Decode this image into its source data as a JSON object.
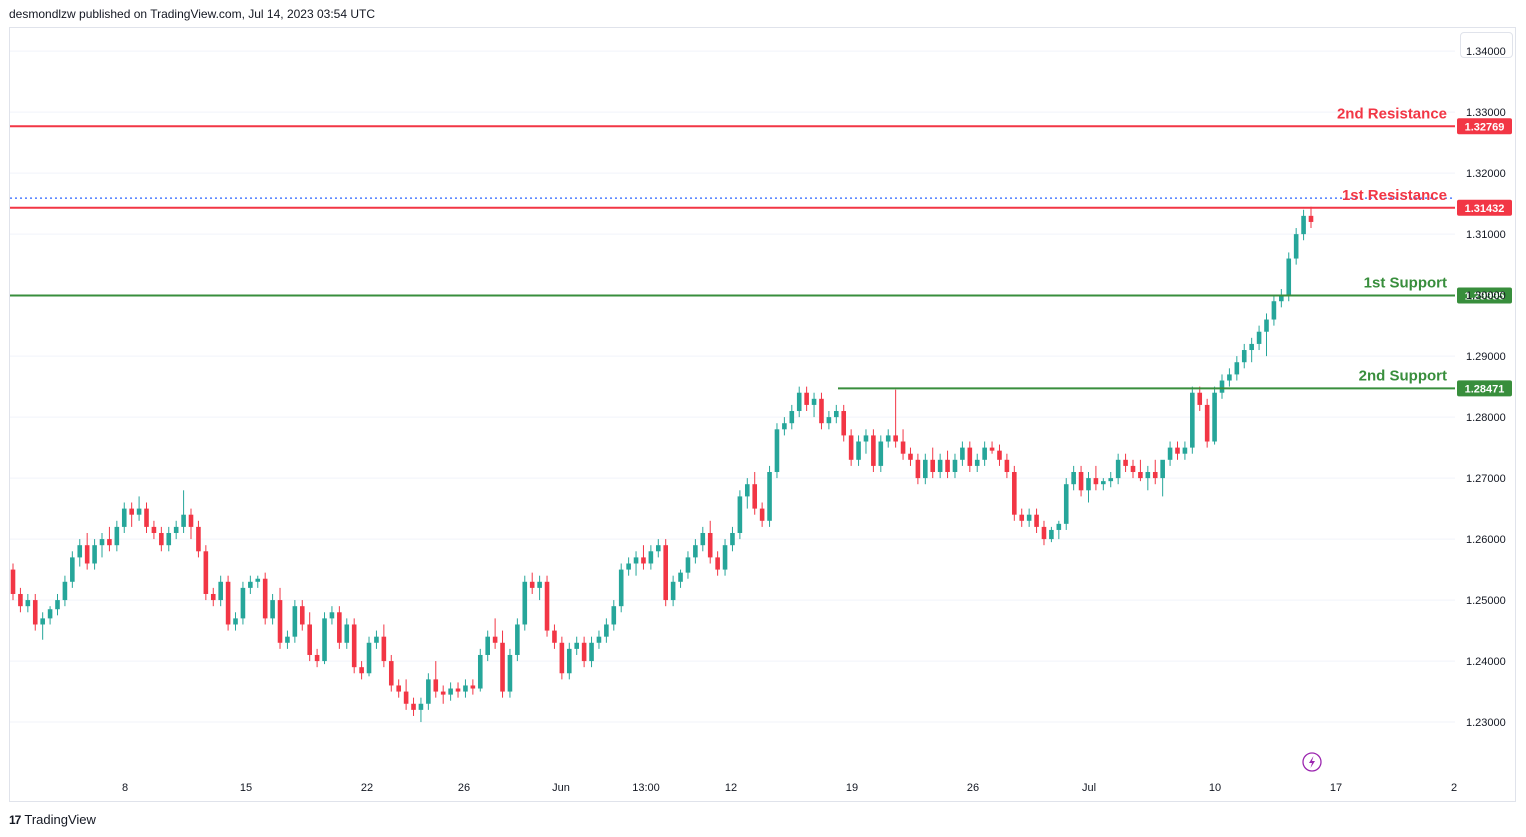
{
  "header": {
    "text": "desmondlzw published on TradingView.com, Jul 14, 2023 03:54 UTC"
  },
  "footer": {
    "logo": "17",
    "brand": "TradingView"
  },
  "chart_data": {
    "type": "candlestick",
    "y_axis_ticks": [
      "1.34000",
      "1.33000",
      "1.32000",
      "1.31000",
      "1.30000",
      "1.29000",
      "1.28000",
      "1.27000",
      "1.26000",
      "1.25000",
      "1.24000",
      "1.23000"
    ],
    "y_axis_values": [
      1.34,
      1.33,
      1.32,
      1.31,
      1.3,
      1.29,
      1.28,
      1.27,
      1.26,
      1.25,
      1.24,
      1.23
    ],
    "ylim": [
      1.2205,
      1.3438
    ],
    "x_axis_ticks": [
      "8",
      "15",
      "22",
      "26",
      "Jun",
      "13:00",
      "12",
      "19",
      "26",
      "Jul",
      "10",
      "17",
      "2"
    ],
    "levels": [
      {
        "label": "2nd Resistance",
        "value": 1.32769,
        "tag": "1.32769",
        "color": "#f23645",
        "style": "solid"
      },
      {
        "label": "1st Resistance",
        "value": 1.31432,
        "tag": "1.31432",
        "color": "#f23645",
        "style": "solid"
      },
      {
        "label": "1st Support",
        "value": 1.29995,
        "tag": "1.29995",
        "color": "#388e3c",
        "style": "solid"
      },
      {
        "label": "2nd Support",
        "value": 1.28471,
        "tag": "1.28471",
        "color": "#388e3c",
        "style": "solid"
      }
    ],
    "dotted_level": {
      "value": 1.3159,
      "color": "#2962ff"
    },
    "colors": {
      "up": "#26a69a",
      "down": "#f23645",
      "grid": "#f0f3fa",
      "axis_text": "#131722"
    },
    "candles": [
      [
        1.255,
        1.256,
        1.25,
        1.251
      ],
      [
        1.251,
        1.252,
        1.248,
        1.249
      ],
      [
        1.249,
        1.251,
        1.248,
        1.25
      ],
      [
        1.25,
        1.251,
        1.245,
        1.246
      ],
      [
        1.246,
        1.248,
        1.2435,
        1.247
      ],
      [
        1.247,
        1.249,
        1.246,
        1.2485
      ],
      [
        1.2485,
        1.251,
        1.2475,
        1.25
      ],
      [
        1.25,
        1.254,
        1.249,
        1.253
      ],
      [
        1.253,
        1.258,
        1.252,
        1.257
      ],
      [
        1.257,
        1.26,
        1.2555,
        1.259
      ],
      [
        1.259,
        1.261,
        1.255,
        1.256
      ],
      [
        1.256,
        1.26,
        1.255,
        1.259
      ],
      [
        1.259,
        1.261,
        1.257,
        1.26
      ],
      [
        1.26,
        1.262,
        1.258,
        1.259
      ],
      [
        1.259,
        1.263,
        1.258,
        1.262
      ],
      [
        1.262,
        1.266,
        1.261,
        1.265
      ],
      [
        1.265,
        1.266,
        1.262,
        1.264
      ],
      [
        1.264,
        1.267,
        1.263,
        1.265
      ],
      [
        1.265,
        1.266,
        1.261,
        1.262
      ],
      [
        1.262,
        1.263,
        1.26,
        1.261
      ],
      [
        1.261,
        1.262,
        1.258,
        1.259
      ],
      [
        1.259,
        1.262,
        1.258,
        1.261
      ],
      [
        1.261,
        1.263,
        1.26,
        1.262
      ],
      [
        1.262,
        1.268,
        1.261,
        1.264
      ],
      [
        1.264,
        1.265,
        1.26,
        1.262
      ],
      [
        1.262,
        1.263,
        1.257,
        1.258
      ],
      [
        1.258,
        1.259,
        1.25,
        1.251
      ],
      [
        1.251,
        1.252,
        1.249,
        1.25
      ],
      [
        1.25,
        1.254,
        1.249,
        1.253
      ],
      [
        1.253,
        1.254,
        1.245,
        1.246
      ],
      [
        1.246,
        1.248,
        1.245,
        1.247
      ],
      [
        1.247,
        1.253,
        1.246,
        1.252
      ],
      [
        1.252,
        1.254,
        1.251,
        1.253
      ],
      [
        1.253,
        1.254,
        1.252,
        1.2535
      ],
      [
        1.2535,
        1.2545,
        1.246,
        1.247
      ],
      [
        1.247,
        1.251,
        1.246,
        1.25
      ],
      [
        1.25,
        1.252,
        1.242,
        1.243
      ],
      [
        1.243,
        1.245,
        1.242,
        1.244
      ],
      [
        1.244,
        1.25,
        1.243,
        1.249
      ],
      [
        1.249,
        1.25,
        1.245,
        1.246
      ],
      [
        1.246,
        1.248,
        1.24,
        1.241
      ],
      [
        1.241,
        1.242,
        1.239,
        1.24
      ],
      [
        1.24,
        1.248,
        1.2395,
        1.247
      ],
      [
        1.247,
        1.249,
        1.246,
        1.248
      ],
      [
        1.248,
        1.249,
        1.242,
        1.243
      ],
      [
        1.243,
        1.247,
        1.242,
        1.246
      ],
      [
        1.246,
        1.247,
        1.238,
        1.239
      ],
      [
        1.239,
        1.24,
        1.237,
        1.238
      ],
      [
        1.238,
        1.244,
        1.2375,
        1.243
      ],
      [
        1.243,
        1.245,
        1.242,
        1.244
      ],
      [
        1.244,
        1.246,
        1.239,
        1.24
      ],
      [
        1.24,
        1.241,
        1.235,
        1.236
      ],
      [
        1.236,
        1.237,
        1.234,
        1.235
      ],
      [
        1.235,
        1.237,
        1.232,
        1.233
      ],
      [
        1.233,
        1.234,
        1.231,
        1.232
      ],
      [
        1.232,
        1.234,
        1.23,
        1.233
      ],
      [
        1.233,
        1.238,
        1.232,
        1.237
      ],
      [
        1.237,
        1.24,
        1.234,
        1.235
      ],
      [
        1.235,
        1.236,
        1.233,
        1.2345
      ],
      [
        1.2345,
        1.2365,
        1.2335,
        1.2355
      ],
      [
        1.2355,
        1.2365,
        1.234,
        1.235
      ],
      [
        1.235,
        1.237,
        1.234,
        1.236
      ],
      [
        1.236,
        1.237,
        1.2345,
        1.2355
      ],
      [
        1.2355,
        1.242,
        1.235,
        1.241
      ],
      [
        1.241,
        1.245,
        1.24,
        1.244
      ],
      [
        1.244,
        1.247,
        1.242,
        1.243
      ],
      [
        1.243,
        1.245,
        1.234,
        1.235
      ],
      [
        1.235,
        1.242,
        1.234,
        1.241
      ],
      [
        1.241,
        1.247,
        1.24,
        1.246
      ],
      [
        1.246,
        1.254,
        1.245,
        1.253
      ],
      [
        1.253,
        1.2545,
        1.251,
        1.252
      ],
      [
        1.252,
        1.254,
        1.25,
        1.253
      ],
      [
        1.253,
        1.254,
        1.244,
        1.245
      ],
      [
        1.245,
        1.246,
        1.242,
        1.243
      ],
      [
        1.243,
        1.244,
        1.237,
        1.238
      ],
      [
        1.238,
        1.243,
        1.237,
        1.242
      ],
      [
        1.242,
        1.244,
        1.241,
        1.243
      ],
      [
        1.243,
        1.244,
        1.239,
        1.24
      ],
      [
        1.24,
        1.244,
        1.239,
        1.243
      ],
      [
        1.243,
        1.245,
        1.242,
        1.244
      ],
      [
        1.244,
        1.247,
        1.243,
        1.246
      ],
      [
        1.246,
        1.25,
        1.245,
        1.249
      ],
      [
        1.249,
        1.256,
        1.248,
        1.255
      ],
      [
        1.255,
        1.257,
        1.254,
        1.256
      ],
      [
        1.256,
        1.258,
        1.254,
        1.257
      ],
      [
        1.257,
        1.259,
        1.255,
        1.256
      ],
      [
        1.256,
        1.259,
        1.255,
        1.258
      ],
      [
        1.258,
        1.26,
        1.257,
        1.259
      ],
      [
        1.259,
        1.26,
        1.249,
        1.25
      ],
      [
        1.25,
        1.254,
        1.249,
        1.253
      ],
      [
        1.253,
        1.255,
        1.252,
        1.2545
      ],
      [
        1.2545,
        1.258,
        1.2535,
        1.257
      ],
      [
        1.257,
        1.26,
        1.256,
        1.259
      ],
      [
        1.259,
        1.262,
        1.258,
        1.261
      ],
      [
        1.261,
        1.263,
        1.256,
        1.257
      ],
      [
        1.257,
        1.258,
        1.254,
        1.255
      ],
      [
        1.255,
        1.26,
        1.254,
        1.259
      ],
      [
        1.259,
        1.262,
        1.258,
        1.261
      ],
      [
        1.261,
        1.268,
        1.26,
        1.267
      ],
      [
        1.267,
        1.27,
        1.265,
        1.269
      ],
      [
        1.269,
        1.271,
        1.264,
        1.265
      ],
      [
        1.265,
        1.266,
        1.262,
        1.263
      ],
      [
        1.263,
        1.272,
        1.262,
        1.271
      ],
      [
        1.271,
        1.279,
        1.27,
        1.278
      ],
      [
        1.278,
        1.28,
        1.277,
        1.279
      ],
      [
        1.279,
        1.282,
        1.278,
        1.281
      ],
      [
        1.281,
        1.285,
        1.28,
        1.284
      ],
      [
        1.284,
        1.285,
        1.281,
        1.282
      ],
      [
        1.282,
        1.284,
        1.28,
        1.283
      ],
      [
        1.283,
        1.284,
        1.278,
        1.279
      ],
      [
        1.279,
        1.281,
        1.278,
        1.28
      ],
      [
        1.28,
        1.282,
        1.279,
        1.281
      ],
      [
        1.281,
        1.282,
        1.276,
        1.277
      ],
      [
        1.277,
        1.278,
        1.272,
        1.273
      ],
      [
        1.273,
        1.277,
        1.272,
        1.276
      ],
      [
        1.276,
        1.278,
        1.274,
        1.277
      ],
      [
        1.277,
        1.278,
        1.271,
        1.272
      ],
      [
        1.272,
        1.277,
        1.271,
        1.276
      ],
      [
        1.276,
        1.278,
        1.275,
        1.277
      ],
      [
        1.277,
        1.2845,
        1.275,
        1.276
      ],
      [
        1.276,
        1.278,
        1.273,
        1.274
      ],
      [
        1.274,
        1.275,
        1.272,
        1.273
      ],
      [
        1.273,
        1.274,
        1.269,
        1.27
      ],
      [
        1.27,
        1.274,
        1.269,
        1.273
      ],
      [
        1.273,
        1.275,
        1.27,
        1.271
      ],
      [
        1.271,
        1.274,
        1.27,
        1.273
      ],
      [
        1.273,
        1.2745,
        1.27,
        1.271
      ],
      [
        1.271,
        1.274,
        1.27,
        1.273
      ],
      [
        1.273,
        1.276,
        1.272,
        1.275
      ],
      [
        1.275,
        1.276,
        1.271,
        1.272
      ],
      [
        1.272,
        1.274,
        1.271,
        1.273
      ],
      [
        1.273,
        1.276,
        1.272,
        1.275
      ],
      [
        1.275,
        1.276,
        1.274,
        1.2745
      ],
      [
        1.2745,
        1.2755,
        1.272,
        1.273
      ],
      [
        1.273,
        1.274,
        1.27,
        1.271
      ],
      [
        1.271,
        1.272,
        1.263,
        1.264
      ],
      [
        1.264,
        1.265,
        1.262,
        1.263
      ],
      [
        1.263,
        1.265,
        1.262,
        1.264
      ],
      [
        1.264,
        1.265,
        1.261,
        1.262
      ],
      [
        1.262,
        1.263,
        1.259,
        1.26
      ],
      [
        1.26,
        1.262,
        1.2595,
        1.2615
      ],
      [
        1.2615,
        1.263,
        1.26,
        1.2625
      ],
      [
        1.2625,
        1.27,
        1.2615,
        1.269
      ],
      [
        1.269,
        1.272,
        1.268,
        1.271
      ],
      [
        1.271,
        1.272,
        1.267,
        1.268
      ],
      [
        1.268,
        1.271,
        1.266,
        1.27
      ],
      [
        1.27,
        1.272,
        1.268,
        1.269
      ],
      [
        1.269,
        1.27,
        1.268,
        1.2695
      ],
      [
        1.2695,
        1.271,
        1.2685,
        1.27
      ],
      [
        1.27,
        1.274,
        1.269,
        1.273
      ],
      [
        1.273,
        1.274,
        1.271,
        1.272
      ],
      [
        1.272,
        1.273,
        1.27,
        1.271
      ],
      [
        1.271,
        1.273,
        1.2695,
        1.27
      ],
      [
        1.27,
        1.272,
        1.268,
        1.271
      ],
      [
        1.271,
        1.273,
        1.269,
        1.27
      ],
      [
        1.27,
        1.272,
        1.267,
        1.273
      ],
      [
        1.273,
        1.276,
        1.272,
        1.275
      ],
      [
        1.275,
        1.276,
        1.273,
        1.274
      ],
      [
        1.274,
        1.276,
        1.273,
        1.275
      ],
      [
        1.275,
        1.285,
        1.274,
        1.284
      ],
      [
        1.284,
        1.285,
        1.281,
        1.282
      ],
      [
        1.282,
        1.283,
        1.275,
        1.276
      ],
      [
        1.276,
        1.285,
        1.2755,
        1.284
      ],
      [
        1.284,
        1.287,
        1.283,
        1.286
      ],
      [
        1.286,
        1.288,
        1.285,
        1.287
      ],
      [
        1.287,
        1.29,
        1.286,
        1.289
      ],
      [
        1.289,
        1.292,
        1.288,
        1.291
      ],
      [
        1.291,
        1.293,
        1.289,
        1.292
      ],
      [
        1.292,
        1.295,
        1.291,
        1.294
      ],
      [
        1.294,
        1.297,
        1.29,
        1.296
      ],
      [
        1.296,
        1.3,
        1.295,
        1.299
      ],
      [
        1.299,
        1.301,
        1.298,
        1.3
      ],
      [
        1.3,
        1.307,
        1.299,
        1.306
      ],
      [
        1.306,
        1.311,
        1.305,
        1.31
      ],
      [
        1.31,
        1.314,
        1.309,
        1.313
      ],
      [
        1.313,
        1.3145,
        1.311,
        1.312
      ]
    ]
  }
}
